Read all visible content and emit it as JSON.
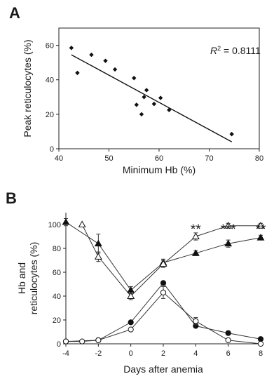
{
  "chart_data": [
    {
      "panel": "A",
      "type": "scatter",
      "title": "",
      "xlabel": "Minimum Hb (%)",
      "ylabel": "Peak reticulocytes (%)",
      "xlim": [
        40,
        80
      ],
      "ylim": [
        0,
        70
      ],
      "xticks": [
        40,
        50,
        60,
        70,
        80
      ],
      "yticks": [
        0,
        20,
        40,
        60
      ],
      "grid": false,
      "annotation": {
        "prefix": "R",
        "sup": "2",
        "value": " = 0.8111"
      },
      "points": [
        {
          "x": 42.5,
          "y": 58.5
        },
        {
          "x": 43.7,
          "y": 44
        },
        {
          "x": 46.5,
          "y": 54.5
        },
        {
          "x": 49.3,
          "y": 51
        },
        {
          "x": 51.2,
          "y": 46
        },
        {
          "x": 55.0,
          "y": 41
        },
        {
          "x": 55.5,
          "y": 25.5
        },
        {
          "x": 56.5,
          "y": 20
        },
        {
          "x": 57.0,
          "y": 30
        },
        {
          "x": 57.5,
          "y": 34
        },
        {
          "x": 59.0,
          "y": 26
        },
        {
          "x": 60.3,
          "y": 29.5
        },
        {
          "x": 62.0,
          "y": 22.5
        },
        {
          "x": 74.5,
          "y": 8.5
        }
      ],
      "regression": {
        "x": [
          42.5,
          74.5
        ],
        "y": [
          54.5,
          4.0
        ]
      }
    },
    {
      "panel": "B",
      "type": "line",
      "title": "",
      "xlabel": "Days after anemia",
      "ylabel_lines": [
        "Hb and",
        "reticulocytes (%)"
      ],
      "xlim": [
        -4,
        8
      ],
      "ylim": [
        0,
        110
      ],
      "xticks": [
        -4,
        -2,
        0,
        2,
        4,
        6,
        8
      ],
      "yticks": [
        0,
        20,
        40,
        60,
        80,
        100
      ],
      "grid": false,
      "series": [
        {
          "marker": "filled-triangle",
          "x": [
            -4,
            -2,
            0,
            2,
            4,
            6,
            8
          ],
          "y": [
            102,
            84,
            45,
            68,
            76,
            84,
            89
          ],
          "err": [
            3,
            8,
            3,
            3,
            2,
            3,
            2
          ]
        },
        {
          "marker": "open-triangle",
          "x": [
            -3,
            -2,
            0,
            2,
            4,
            6,
            8
          ],
          "y": [
            100,
            73,
            40,
            67,
            90,
            99,
            99
          ],
          "err": [
            0,
            4,
            3,
            3,
            3,
            2,
            2
          ]
        },
        {
          "marker": "filled-circle",
          "x": [
            -4,
            -2,
            0,
            2,
            4,
            6,
            8
          ],
          "y": [
            2,
            3,
            18,
            51,
            15,
            9,
            4
          ],
          "err": [
            0,
            0,
            0,
            0,
            0,
            0,
            0
          ]
        },
        {
          "marker": "open-circle",
          "x": [
            -4,
            -3,
            -2,
            0,
            2,
            4,
            6,
            8
          ],
          "y": [
            2,
            2,
            3,
            12,
            43,
            19,
            3,
            0
          ],
          "err": [
            0,
            0,
            0,
            0,
            5,
            3,
            0,
            0
          ]
        }
      ],
      "annotations": [
        {
          "x": 4,
          "text": "**"
        },
        {
          "x": 6,
          "text": "***"
        },
        {
          "x": 8,
          "text": "**"
        }
      ]
    }
  ]
}
